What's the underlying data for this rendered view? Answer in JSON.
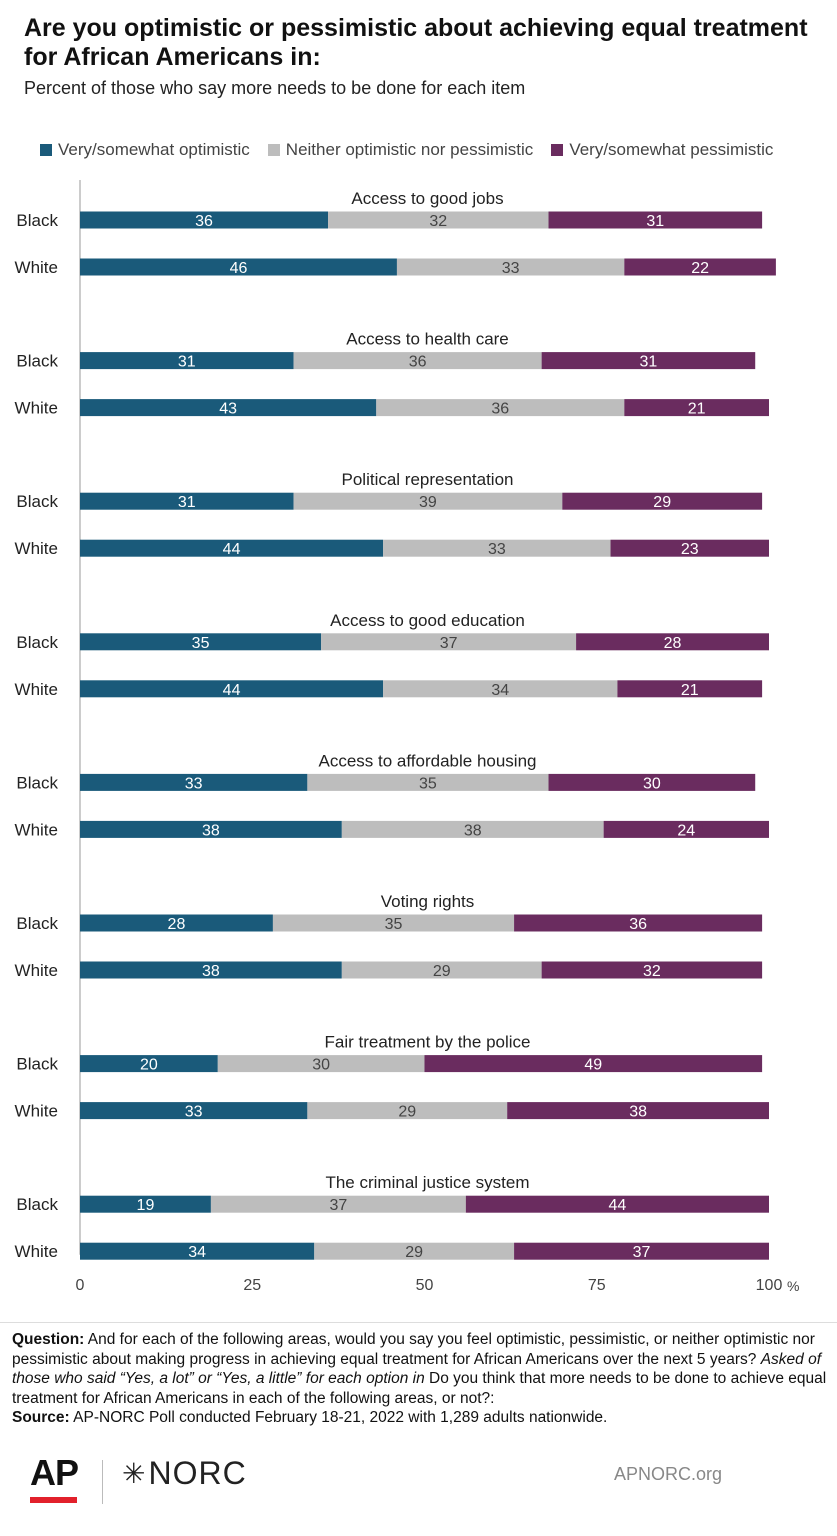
{
  "title": "Are you optimistic or pessimistic about achieving equal treatment for African Americans in:",
  "subtitle": "Percent of those who say more needs to be done for each item",
  "legend": [
    {
      "label": "Very/somewhat optimistic",
      "color": "#1a5a7a"
    },
    {
      "label": "Neither optimistic nor pessimistic",
      "color": "#bdbdbd"
    },
    {
      "label": "Very/somewhat pessimistic",
      "color": "#6a2c5f"
    }
  ],
  "chart_data": {
    "type": "bar",
    "orientation": "horizontal",
    "stacked": true,
    "xlim": [
      0,
      100
    ],
    "x_ticks": [
      "0",
      "25",
      "50",
      "75",
      "100"
    ],
    "x_unit": "%",
    "series_names": [
      "Very/somewhat optimistic",
      "Neither optimistic nor pessimistic",
      "Very/somewhat pessimistic"
    ],
    "colors": [
      "#1a5a7a",
      "#bdbdbd",
      "#6a2c5f"
    ],
    "groups": [
      {
        "label": "Access to good jobs",
        "rows": [
          {
            "label": "Black",
            "values": [
              36,
              32,
              31
            ]
          },
          {
            "label": "White",
            "values": [
              46,
              33,
              22
            ]
          }
        ]
      },
      {
        "label": "Access to health care",
        "rows": [
          {
            "label": "Black",
            "values": [
              31,
              36,
              31
            ]
          },
          {
            "label": "White",
            "values": [
              43,
              36,
              21
            ]
          }
        ]
      },
      {
        "label": "Political representation",
        "rows": [
          {
            "label": "Black",
            "values": [
              31,
              39,
              29
            ]
          },
          {
            "label": "White",
            "values": [
              44,
              33,
              23
            ]
          }
        ]
      },
      {
        "label": "Access to good education",
        "rows": [
          {
            "label": "Black",
            "values": [
              35,
              37,
              28
            ]
          },
          {
            "label": "White",
            "values": [
              44,
              34,
              21
            ]
          }
        ]
      },
      {
        "label": "Access to affordable housing",
        "rows": [
          {
            "label": "Black",
            "values": [
              33,
              35,
              30
            ]
          },
          {
            "label": "White",
            "values": [
              38,
              38,
              24
            ]
          }
        ]
      },
      {
        "label": "Voting rights",
        "rows": [
          {
            "label": "Black",
            "values": [
              28,
              35,
              36
            ]
          },
          {
            "label": "White",
            "values": [
              38,
              29,
              32
            ]
          }
        ]
      },
      {
        "label": "Fair treatment by the police",
        "rows": [
          {
            "label": "Black",
            "values": [
              20,
              30,
              49
            ]
          },
          {
            "label": "White",
            "values": [
              33,
              29,
              38
            ]
          }
        ]
      },
      {
        "label": "The criminal justice system",
        "rows": [
          {
            "label": "Black",
            "values": [
              19,
              37,
              44
            ]
          },
          {
            "label": "White",
            "values": [
              34,
              29,
              37
            ]
          }
        ]
      }
    ]
  },
  "notes": {
    "question_label": "Question:",
    "question_text": " And for each of the following areas, would you say you feel optimistic, pessimistic, or neither optimistic nor pessimistic about making progress in achieving equal treatment for African Americans over the next 5 years? ",
    "question_italic": "Asked of those who said “Yes, a lot” or “Yes, a little” for each option in",
    "question_tail": " Do you think that more needs to be done to achieve equal treatment for African Americans in each of the following areas, or not?:",
    "source_label": "Source:",
    "source_text": " AP-NORC Poll conducted February 18-21, 2022 with 1,289 adults nationwide."
  },
  "footer": {
    "ap_logo": "AP",
    "norc_star": "✳",
    "norc_logo": "NORC",
    "site": "APNORC.org"
  }
}
